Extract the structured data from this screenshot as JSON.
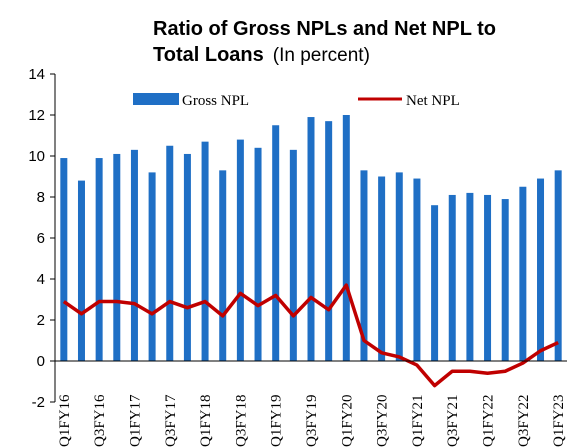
{
  "chart_data": {
    "type": "bar",
    "title": "Ratio of Gross NPLs and Net NPL to",
    "title_line2": "Total Loans",
    "subtitle": "(In percent)",
    "ylim": [
      -2,
      14
    ],
    "yticks": [
      14,
      12,
      10,
      8,
      6,
      4,
      2,
      0,
      -2
    ],
    "x_labels": [
      "Q1FY16",
      "Q3FY16",
      "Q1FY17",
      "Q3FY17",
      "Q1FY18",
      "Q3FY18",
      "Q1FY19",
      "Q3FY19",
      "Q1FY20",
      "Q3FY20",
      "Q1FY21",
      "Q3FY21",
      "Q1FY22",
      "Q3FY22",
      "Q1FY23"
    ],
    "legend_position": "top",
    "series": [
      {
        "name": "Gross NPL",
        "type": "bar",
        "color": "#1f6fc5",
        "values": [
          9.9,
          8.8,
          9.9,
          10.1,
          10.3,
          9.2,
          10.5,
          10.1,
          10.7,
          9.3,
          10.8,
          10.4,
          11.5,
          10.3,
          11.9,
          11.7,
          12.0,
          9.3,
          9.0,
          9.2,
          8.9,
          7.6,
          8.1,
          8.2,
          8.1,
          7.9,
          8.5,
          8.9,
          9.3
        ]
      },
      {
        "name": "Net NPL",
        "type": "line",
        "color": "#c00000",
        "values": [
          2.9,
          2.3,
          2.9,
          2.9,
          2.8,
          2.3,
          2.9,
          2.6,
          2.9,
          2.2,
          3.3,
          2.7,
          3.2,
          2.2,
          3.1,
          2.5,
          3.7,
          1.0,
          0.4,
          0.2,
          -0.2,
          -1.2,
          -0.5,
          -0.5,
          -0.6,
          -0.5,
          -0.1,
          0.5,
          0.9
        ]
      }
    ]
  }
}
